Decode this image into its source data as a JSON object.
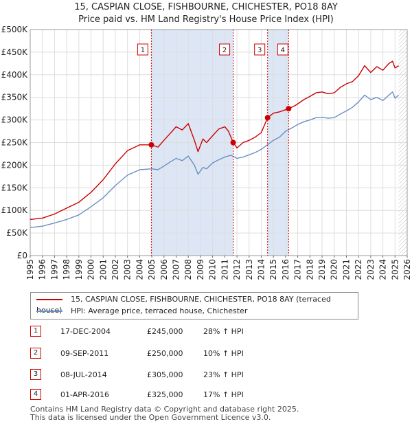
{
  "title_line1": "15, CASPIAN CLOSE, FISHBOURNE, CHICHESTER, PO18 8AY",
  "title_line2": "Price paid vs. HM Land Registry's House Price Index (HPI)",
  "legend": {
    "red_label": "15, CASPIAN CLOSE, FISHBOURNE, CHICHESTER, PO18 8AY (terraced house)",
    "blue_label": "HPI: Average price, terraced house, Chichester"
  },
  "transactions": [
    {
      "num": "1",
      "date": "17-DEC-2004",
      "price": "£245,000",
      "hpi": "28% ↑ HPI"
    },
    {
      "num": "2",
      "date": "09-SEP-2011",
      "price": "£250,000",
      "hpi": "10% ↑ HPI"
    },
    {
      "num": "3",
      "date": "08-JUL-2014",
      "price": "£305,000",
      "hpi": "23% ↑ HPI"
    },
    {
      "num": "4",
      "date": "01-APR-2016",
      "price": "£325,000",
      "hpi": "17% ↑ HPI"
    }
  ],
  "footer_line1": "Contains HM Land Registry data © Copyright and database right 2025.",
  "footer_line2": "This data is licensed under the Open Government Licence v3.0.",
  "colors": {
    "red": "#cc0000",
    "blue": "#6a8fc4",
    "shade": "#dde6f5",
    "grid": "#dddddd"
  },
  "chart_data": {
    "type": "line",
    "title": "15, CASPIAN CLOSE, FISHBOURNE, CHICHESTER, PO18 8AY",
    "subtitle": "Price paid vs. HM Land Registry's House Price Index (HPI)",
    "xlabel": "",
    "ylabel": "",
    "xlim": [
      1995,
      2026
    ],
    "ylim": [
      0,
      500000
    ],
    "yticks": [
      0,
      50000,
      100000,
      150000,
      200000,
      250000,
      300000,
      350000,
      400000,
      450000,
      500000
    ],
    "ytick_labels": [
      "£0",
      "£50K",
      "£100K",
      "£150K",
      "£200K",
      "£250K",
      "£300K",
      "£350K",
      "£400K",
      "£450K",
      "£500K"
    ],
    "xticks": [
      1995,
      1996,
      1997,
      1998,
      1999,
      2000,
      2001,
      2002,
      2003,
      2004,
      2005,
      2006,
      2007,
      2008,
      2009,
      2010,
      2011,
      2012,
      2013,
      2014,
      2015,
      2016,
      2017,
      2018,
      2019,
      2020,
      2021,
      2022,
      2023,
      2024,
      2025,
      2026
    ],
    "xtick_labels": [
      "1995",
      "1996",
      "1997",
      "1998",
      "1999",
      "2000",
      "2001",
      "2002",
      "2003",
      "2004",
      "2005",
      "2006",
      "2007",
      "2008",
      "2009",
      "2010",
      "2011",
      "2012",
      "2013",
      "2014",
      "2015",
      "2016",
      "2017",
      "2018",
      "2019",
      "2020",
      "2021",
      "2022",
      "2023",
      "2024",
      "2025",
      "2026"
    ],
    "grid": true,
    "shaded_ranges": [
      [
        2004.96,
        2011.69
      ],
      [
        2014.52,
        2016.25
      ]
    ],
    "hatched_from": 2025.3,
    "series": [
      {
        "name": "15, CASPIAN CLOSE, FISHBOURNE, CHICHESTER, PO18 8AY (terraced house)",
        "color": "#cc0000",
        "x": [
          1995.0,
          1996.0,
          1997.0,
          1998.0,
          1999.0,
          2000.0,
          2001.0,
          2002.0,
          2003.0,
          2004.0,
          2004.96,
          2005.5,
          2006.0,
          2006.5,
          2007.0,
          2007.5,
          2008.0,
          2008.5,
          2008.8,
          2009.2,
          2009.5,
          2010.0,
          2010.5,
          2011.0,
          2011.3,
          2011.69,
          2012.0,
          2012.5,
          2013.0,
          2013.5,
          2014.0,
          2014.52,
          2015.0,
          2015.5,
          2016.25,
          2016.8,
          2017.5,
          2018.0,
          2018.5,
          2019.0,
          2019.5,
          2020.0,
          2020.5,
          2021.0,
          2021.5,
          2022.0,
          2022.5,
          2023.0,
          2023.5,
          2024.0,
          2024.5,
          2024.8,
          2025.0,
          2025.3
        ],
        "y": [
          80000,
          83000,
          92000,
          105000,
          118000,
          140000,
          168000,
          203000,
          232000,
          245000,
          245000,
          240000,
          255000,
          270000,
          285000,
          278000,
          292000,
          255000,
          230000,
          258000,
          250000,
          265000,
          280000,
          285000,
          275000,
          250000,
          238000,
          250000,
          255000,
          262000,
          272000,
          305000,
          315000,
          318000,
          325000,
          332000,
          345000,
          352000,
          360000,
          362000,
          358000,
          360000,
          372000,
          380000,
          385000,
          398000,
          420000,
          405000,
          418000,
          410000,
          425000,
          430000,
          415000,
          420000
        ]
      },
      {
        "name": "HPI: Average price, terraced house, Chichester",
        "color": "#6a8fc4",
        "x": [
          1995.0,
          1996.0,
          1997.0,
          1998.0,
          1999.0,
          2000.0,
          2001.0,
          2002.0,
          2003.0,
          2004.0,
          2005.0,
          2005.5,
          2006.0,
          2006.5,
          2007.0,
          2007.5,
          2008.0,
          2008.5,
          2008.8,
          2009.2,
          2009.5,
          2010.0,
          2010.5,
          2011.0,
          2011.5,
          2012.0,
          2012.5,
          2013.0,
          2013.5,
          2014.0,
          2014.5,
          2015.0,
          2015.5,
          2016.0,
          2016.5,
          2017.0,
          2017.5,
          2018.0,
          2018.5,
          2019.0,
          2019.5,
          2020.0,
          2020.5,
          2021.0,
          2021.5,
          2022.0,
          2022.5,
          2023.0,
          2023.5,
          2024.0,
          2024.5,
          2024.8,
          2025.0,
          2025.3
        ],
        "y": [
          62000,
          65000,
          72000,
          80000,
          90000,
          108000,
          128000,
          155000,
          178000,
          190000,
          192000,
          190000,
          198000,
          207000,
          215000,
          210000,
          220000,
          200000,
          180000,
          195000,
          192000,
          205000,
          212000,
          218000,
          222000,
          215000,
          218000,
          223000,
          228000,
          235000,
          245000,
          255000,
          262000,
          275000,
          282000,
          290000,
          296000,
          300000,
          305000,
          306000,
          304000,
          305000,
          313000,
          320000,
          328000,
          340000,
          355000,
          345000,
          350000,
          343000,
          355000,
          362000,
          348000,
          355000
        ]
      }
    ],
    "annotations": [
      {
        "label": "1",
        "x": 2004.96,
        "y": 245000
      },
      {
        "label": "2",
        "x": 2011.69,
        "y": 250000
      },
      {
        "label": "3",
        "x": 2014.52,
        "y": 305000
      },
      {
        "label": "4",
        "x": 2016.25,
        "y": 325000
      }
    ]
  }
}
